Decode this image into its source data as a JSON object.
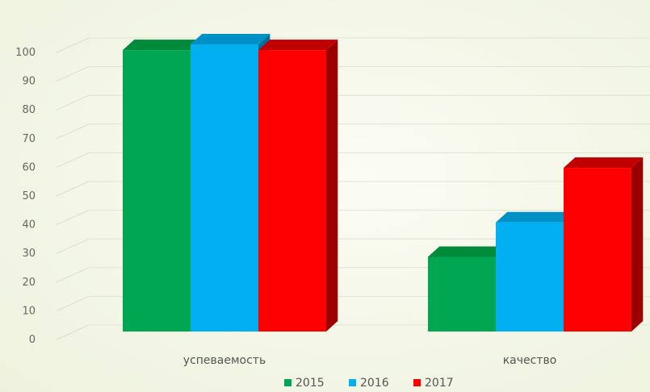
{
  "chart_data": {
    "type": "bar",
    "title": "",
    "xlabel": "",
    "ylabel": "",
    "categories": [
      "успеваемость",
      "качество"
    ],
    "series": [
      {
        "name": "2015",
        "values": [
          98,
          26
        ],
        "color": "#00a651",
        "top_color": "#008a3a",
        "side_color": "#006b2c"
      },
      {
        "name": "2016",
        "values": [
          100,
          38
        ],
        "color": "#00b0f0",
        "top_color": "#0090c8",
        "side_color": "#0070a0"
      },
      {
        "name": "2017",
        "values": [
          98,
          57
        ],
        "color": "#ff0000",
        "top_color": "#c00000",
        "side_color": "#9a0000"
      }
    ],
    "yticks": [
      0,
      10,
      20,
      30,
      40,
      50,
      60,
      70,
      80,
      90,
      100
    ],
    "ylim": [
      0,
      100
    ],
    "grid": true,
    "legend": "bottom"
  }
}
